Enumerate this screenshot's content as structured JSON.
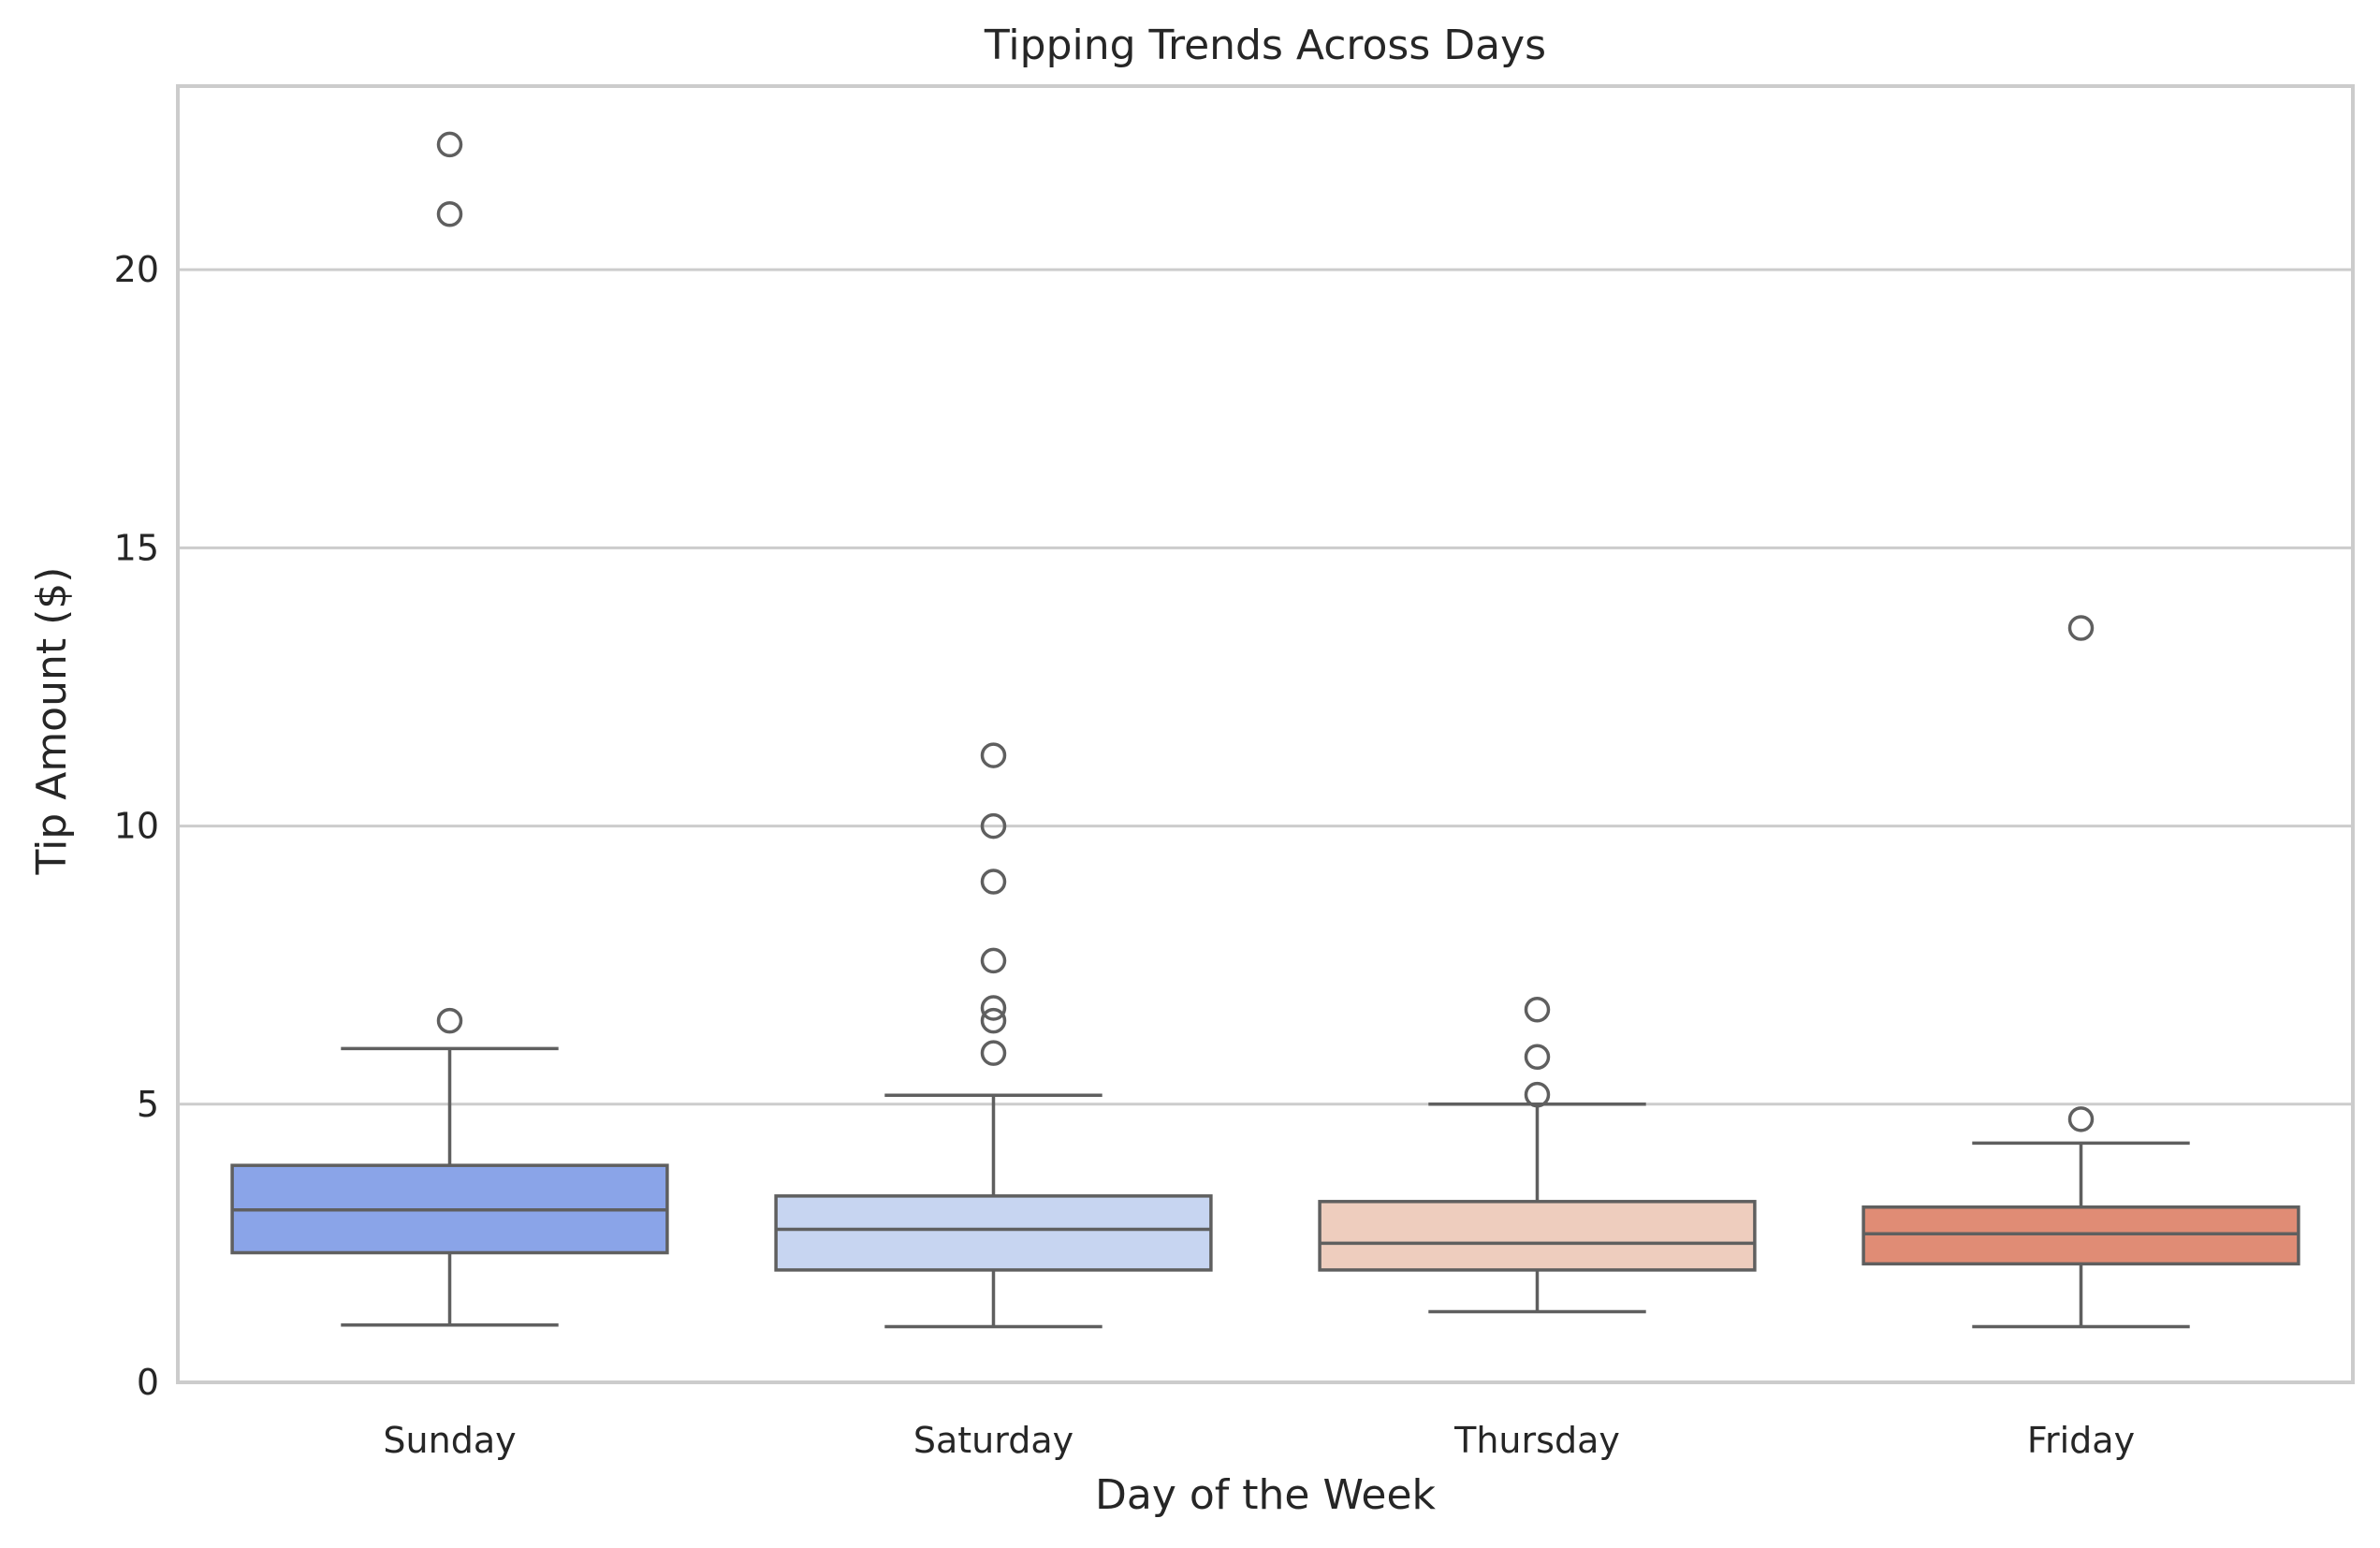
{
  "chart_data": {
    "type": "box",
    "title": "Tipping Trends Across Days",
    "xlabel": "Day of the Week",
    "ylabel": "Tip Amount ($)",
    "ylim": [
      0,
      23.3
    ],
    "yticks": [
      0,
      5,
      10,
      15,
      20
    ],
    "grid": "horizontal",
    "categories": [
      "Sunday",
      "Saturday",
      "Thursday",
      "Friday"
    ],
    "boxes": [
      {
        "category": "Sunday",
        "color": "#8aa4e8",
        "whisker_low": 1.03,
        "q1": 2.33,
        "median": 3.1,
        "q3": 3.9,
        "whisker_high": 6.0,
        "outliers": [
          6.5,
          21.0,
          22.25
        ]
      },
      {
        "category": "Saturday",
        "color": "#c7d5f1",
        "whisker_low": 1.0,
        "q1": 2.02,
        "median": 2.75,
        "q3": 3.35,
        "whisker_high": 5.16,
        "outliers": [
          5.92,
          6.5,
          6.73,
          7.58,
          9.0,
          10.0,
          11.27
        ]
      },
      {
        "category": "Thursday",
        "color": "#eecdbe",
        "whisker_low": 1.27,
        "q1": 2.02,
        "median": 2.5,
        "q3": 3.25,
        "whisker_high": 5.0,
        "outliers": [
          5.17,
          5.85,
          6.7
        ]
      },
      {
        "category": "Friday",
        "color": "#e08c75",
        "whisker_low": 1.0,
        "q1": 2.13,
        "median": 2.67,
        "q3": 3.15,
        "whisker_high": 4.3,
        "outliers": [
          4.73,
          13.56
        ]
      }
    ]
  }
}
